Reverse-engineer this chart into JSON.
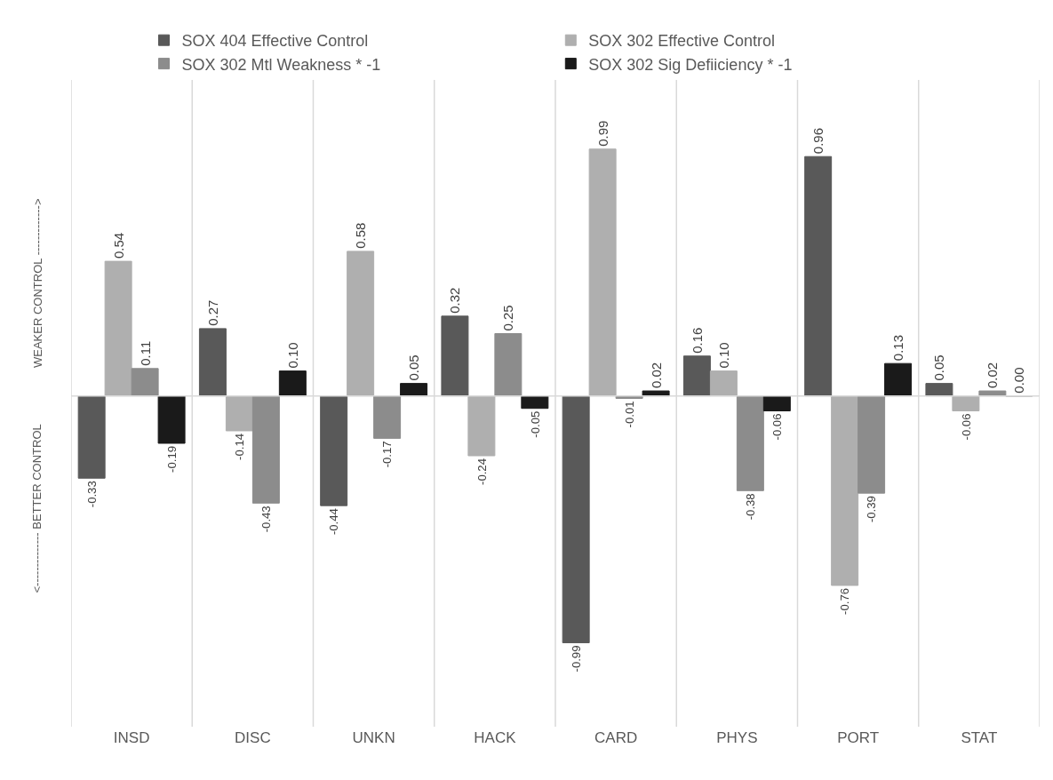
{
  "chart_data": {
    "type": "bar",
    "categories": [
      "INSD",
      "DISC",
      "UNKN",
      "HACK",
      "CARD",
      "PHYS",
      "PORT",
      "STAT"
    ],
    "series": [
      {
        "name": "SOX 404 Effective Control",
        "color": "#595959",
        "values": [
          -0.33,
          0.27,
          -0.44,
          0.32,
          -0.99,
          0.16,
          0.96,
          0.05
        ],
        "value_labels": [
          "-0.33",
          "0.27",
          "-0.44",
          "0.32",
          "-0.99",
          "0.16",
          "0.96",
          "0.05"
        ]
      },
      {
        "name": "SOX 302 Effective Control",
        "color": "#afafaf",
        "values": [
          0.54,
          -0.14,
          0.58,
          -0.24,
          0.99,
          0.1,
          -0.76,
          -0.06
        ],
        "value_labels": [
          "0.54",
          "-0.14",
          "0.58",
          "-0.24",
          "0.99",
          "0.10",
          "-0.76",
          "-0.06"
        ]
      },
      {
        "name": "SOX 302 Mtl Weakness * -1",
        "color": "#8c8c8c",
        "values": [
          0.11,
          -0.43,
          -0.17,
          0.25,
          -0.01,
          -0.38,
          -0.39,
          0.02
        ],
        "value_labels": [
          "0.11",
          "-0.43",
          "-0.17",
          "0.25",
          "-0.01",
          "-0.38",
          "-0.39",
          "0.02"
        ]
      },
      {
        "name": "SOX 302 Sig Defiiciency * -1",
        "color": "#1a1a1a",
        "values": [
          -0.19,
          0.1,
          0.05,
          -0.05,
          0.02,
          -0.06,
          0.13,
          0.0
        ],
        "value_labels": [
          "-0.19",
          "0.10",
          "0.05",
          "-0.05",
          "0.02",
          "-0.06",
          "0.13",
          "0.00"
        ]
      }
    ],
    "annotations": [
      "WEAKER CONTROL ------------->",
      "<-------------- BETTER CONTROL"
    ],
    "grid": "x",
    "legend": "top"
  }
}
